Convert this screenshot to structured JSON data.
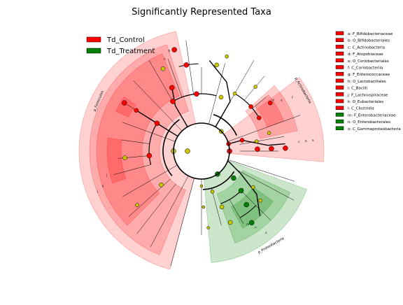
{
  "title": "Significantly Represented Taxa",
  "legend": [
    {
      "label": "Td_Control",
      "color": "#ff0000"
    },
    {
      "label": "Td_Treatment",
      "color": "#008000"
    }
  ],
  "abbreviations": [
    {
      "text": "a: F_Bifidobacteriaceae",
      "group": "control"
    },
    {
      "text": "b: O_Bifidobacteriales",
      "group": "control"
    },
    {
      "text": "c: C_Actinobacteria",
      "group": "control"
    },
    {
      "text": "d: F_Atopobiaceae",
      "group": "control"
    },
    {
      "text": "e: O_Coriobacteriales",
      "group": "control"
    },
    {
      "text": "f: C_Coriobacteriia",
      "group": "control"
    },
    {
      "text": "g: F_Enterococcaceae",
      "group": "control"
    },
    {
      "text": "h: O_Lactobacillales",
      "group": "control"
    },
    {
      "text": "i: C_Bacilli",
      "group": "control"
    },
    {
      "text": "j: F_Lachnospiraceae",
      "group": "control"
    },
    {
      "text": "k: O_Eubacteriales",
      "group": "control"
    },
    {
      "text": "l: C_Clostridia",
      "group": "control"
    },
    {
      "text": "m: F_Enterobacteriaceae",
      "group": "treatment"
    },
    {
      "text": "n: O_Enterobacterales",
      "group": "treatment"
    },
    {
      "text": "o: C_Gammaproteobacteria",
      "group": "treatment"
    }
  ],
  "phyla": [
    {
      "label": "p_Firmicutes",
      "group": "control"
    },
    {
      "label": "p_Actinobacteria",
      "group": "control"
    },
    {
      "label": "p_Proteobacteria",
      "group": "treatment"
    }
  ],
  "colors": {
    "control": "#ff0000",
    "treatment": "#008000",
    "neutral": "#c8c800"
  }
}
